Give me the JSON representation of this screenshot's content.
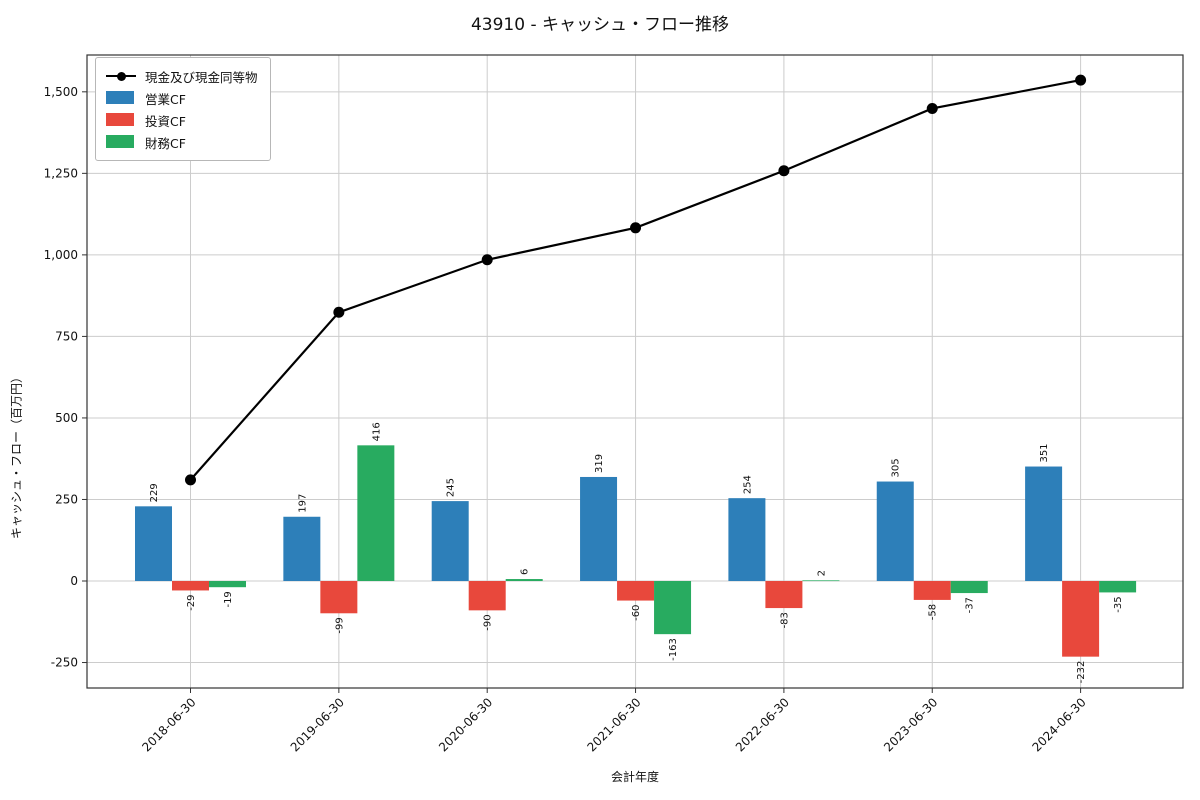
{
  "title": "43910 - キャッシュ・フロー推移",
  "chart_data": {
    "type": "combo-bar-line",
    "categories": [
      "2018-06-30",
      "2019-06-30",
      "2020-06-30",
      "2021-06-30",
      "2022-06-30",
      "2023-06-30",
      "2024-06-30"
    ],
    "series": [
      {
        "name": "現金及び現金同等物",
        "type": "line",
        "color": "#000000",
        "values": [
          310,
          824,
          985,
          1083,
          1258,
          1449,
          1536
        ]
      },
      {
        "name": "営業CF",
        "type": "bar",
        "color": "#2d7fb9",
        "values": [
          229,
          197,
          245,
          319,
          254,
          305,
          351
        ]
      },
      {
        "name": "投資CF",
        "type": "bar",
        "color": "#e8483c",
        "values": [
          -29,
          -99,
          -90,
          -60,
          -83,
          -58,
          -232
        ]
      },
      {
        "name": "財務CF",
        "type": "bar",
        "color": "#28ab60",
        "values": [
          -19,
          416,
          6,
          -163,
          2,
          -37,
          -35
        ]
      }
    ],
    "bar_value_labels": [
      [
        "229",
        "-29",
        "-19"
      ],
      [
        "197",
        "-99",
        "416"
      ],
      [
        "245",
        "-90",
        "6"
      ],
      [
        "319",
        "-60",
        "-163"
      ],
      [
        "254",
        "-83",
        "2"
      ],
      [
        "305",
        "-58",
        "-37"
      ],
      [
        "351",
        "-232",
        "-35"
      ]
    ],
    "xlabel": "会計年度",
    "ylabel": "キャッシュ・フロー（百万円）",
    "ytick_labels": [
      "-250",
      "0",
      "250",
      "500",
      "750",
      "1,000",
      "1,250",
      "1,500"
    ],
    "ylim": [
      -328,
      1613
    ],
    "grid": true,
    "legend_position": "upper left",
    "colors": {
      "grid": "#cccccc",
      "spine": "#333333",
      "tick_text": "#111111"
    }
  }
}
